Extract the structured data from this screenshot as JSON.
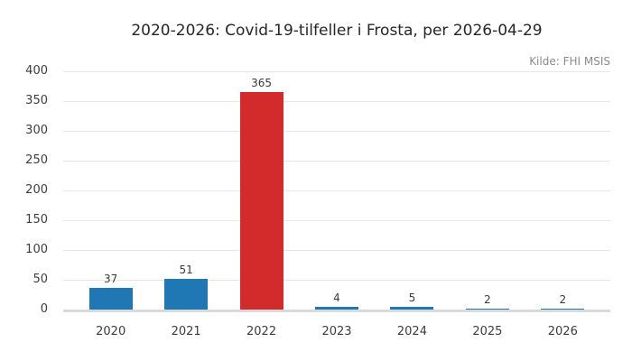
{
  "chart_data": {
    "type": "bar",
    "title": "2020-2026: Covid-19-tilfeller i Frosta, per 2026-04-29",
    "source_note": "Kilde: FHI MSIS",
    "categories": [
      "2020",
      "2021",
      "2022",
      "2023",
      "2024",
      "2025",
      "2026"
    ],
    "values": [
      37,
      51,
      365,
      4,
      5,
      2,
      2
    ],
    "value_labels": [
      "37",
      "51",
      "365",
      "4",
      "5",
      "2",
      "2"
    ],
    "series": [
      {
        "name": "Covid-19-tilfeller",
        "values": [
          37,
          51,
          365,
          4,
          5,
          2,
          2
        ]
      }
    ],
    "highlighted_category": "2022",
    "xlabel": "",
    "ylabel": "",
    "ylim": [
      0,
      400
    ],
    "yticks": [
      0,
      50,
      100,
      150,
      200,
      250,
      300,
      350,
      400
    ],
    "grid": "horizontal",
    "legend": "none",
    "colors": {
      "bar_default": "#1f77b4",
      "bar_highlight": "#d32b2b",
      "grid": "#e7e7e7",
      "axis_line": "#d9d9d9",
      "tick_text": "#3c3c3c",
      "title_text": "#262626",
      "source_text": "#8a8a8a",
      "background": "#ffffff"
    }
  }
}
